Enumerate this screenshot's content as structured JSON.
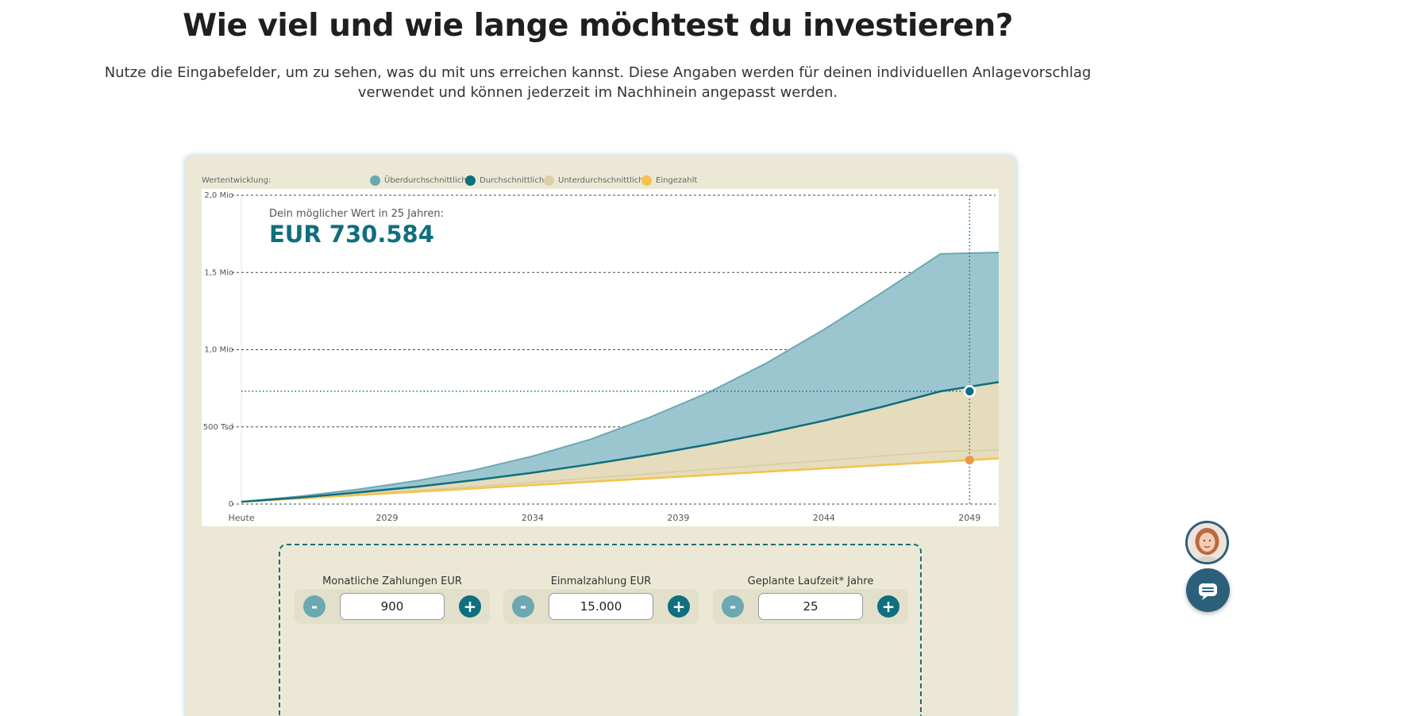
{
  "page": {
    "heading": "Wie viel und wie lange möchtest du investieren?",
    "intro": "Nutze die Eingabefelder, um zu sehen, was du mit uns erreichen kannst. Diese Angaben werden für deinen individuellen Anlagevorschlag verwendet und können jederzeit im Nachhinein angepasst werden."
  },
  "legend": {
    "title": "Wertentwicklung:",
    "items": [
      {
        "label": "Überdurchschnittlich",
        "color": "#6ca8b1"
      },
      {
        "label": "Durchschnittlich",
        "color": "#0f6f7e"
      },
      {
        "label": "Unterdurchschnittlich",
        "color": "#dccfa6"
      },
      {
        "label": "Eingezahlt",
        "color": "#f5c24c"
      }
    ]
  },
  "overlay": {
    "label": "Dein möglicher Wert in 25 Jahren:",
    "value": "EUR 730.584"
  },
  "chart_data": {
    "type": "area",
    "x_labels": [
      "Heute",
      "2029",
      "2034",
      "2039",
      "2044",
      "2049"
    ],
    "x": [
      2024,
      2026,
      2028,
      2030,
      2032,
      2034,
      2036,
      2038,
      2040,
      2042,
      2044,
      2046,
      2048,
      2050
    ],
    "y_ticks": [
      {
        "value": 0,
        "label": "0"
      },
      {
        "value": 500000,
        "label": "500 Tsd"
      },
      {
        "value": 1000000,
        "label": "1,0 Mio"
      },
      {
        "value": 1500000,
        "label": "1,5 Mio"
      },
      {
        "value": 2000000,
        "label": "2,0 Mio"
      }
    ],
    "ylim": [
      0,
      2000000
    ],
    "xlim": [
      2024,
      2050
    ],
    "grid": true,
    "series": [
      {
        "name": "Überdurchschnittlich",
        "color": "#6ca8b1",
        "values": [
          15000,
          50000,
          95000,
          150000,
          220000,
          310000,
          420000,
          560000,
          720000,
          910000,
          1130000,
          1370000,
          1620000,
          1630000
        ]
      },
      {
        "name": "Durchschnittlich",
        "color": "#0f6f7e",
        "values": [
          15000,
          42000,
          75000,
          112000,
          155000,
          203000,
          258000,
          318000,
          385000,
          458000,
          540000,
          630000,
          730000,
          790000
        ]
      },
      {
        "name": "Unterdurchschnittlich",
        "color": "#dccfa6",
        "values": [
          15000,
          38000,
          62000,
          88000,
          114000,
          141000,
          168000,
          196000,
          224000,
          253000,
          282000,
          311000,
          340000,
          350000
        ]
      },
      {
        "name": "Eingezahlt",
        "color": "#f5c24c",
        "values": [
          15000,
          36600,
          58200,
          79800,
          101400,
          123000,
          144600,
          166200,
          187800,
          209400,
          231000,
          252600,
          274200,
          295800
        ]
      }
    ],
    "marker": {
      "x": 2049,
      "durchschnittlich": 730584,
      "eingezahlt": 285000
    }
  },
  "controls": [
    {
      "label": "Monatliche Zahlungen EUR",
      "value": "900"
    },
    {
      "label": "Einmalzahlung EUR",
      "value": "15.000"
    },
    {
      "label": "Geplante Laufzeit* Jahre",
      "value": "25"
    }
  ],
  "buttons": {
    "minus": "-",
    "plus": "+"
  },
  "widgets": {
    "avatar_icon": "avatar",
    "chat_icon": "chat-bubble-icon"
  }
}
